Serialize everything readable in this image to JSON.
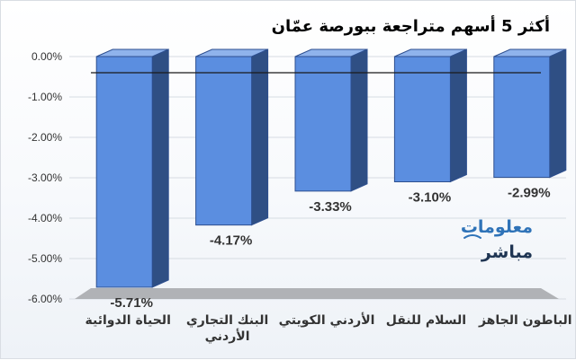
{
  "chart_data": {
    "type": "bar",
    "title": "أكثر 5 أسهم متراجعة ببورصة عمّان",
    "categories": [
      [
        "الحياة الدوائية"
      ],
      [
        "البنك التجاري",
        "الأردني"
      ],
      [
        "الأردني الكويتي"
      ],
      [
        "السلام للنقل"
      ],
      [
        "الباطون الجاهز"
      ]
    ],
    "series": [
      {
        "values": [
          -5.71,
          -4.17,
          -3.33,
          -3.1,
          -2.99
        ]
      }
    ],
    "data_labels": [
      "-5.71%",
      "-4.17%",
      "-3.33%",
      "-3.10%",
      "-2.99%"
    ],
    "y_ticks": [
      "0.00%",
      "-1.00%",
      "-2.00%",
      "-3.00%",
      "-4.00%",
      "-5.00%",
      "-6.00%"
    ],
    "ylim": [
      -6,
      0
    ],
    "xlabel": "",
    "ylabel": "",
    "grid": true,
    "bar_style": "3d",
    "colors": {
      "bar_front": "#5b8ee0",
      "bar_side": "#2f4f84",
      "bar_top": "#8fb3ec",
      "bar_stroke": "#2d4f8f",
      "axis_text": "#333333",
      "title_text": "#1f1f1f",
      "grid": "#d6dbe2",
      "floor": "#a9abae",
      "watermark_blue": "#2f73b8",
      "watermark_dark": "#1f3553"
    }
  },
  "watermark": {
    "line1": "معلومات",
    "line2": "مباشر"
  }
}
